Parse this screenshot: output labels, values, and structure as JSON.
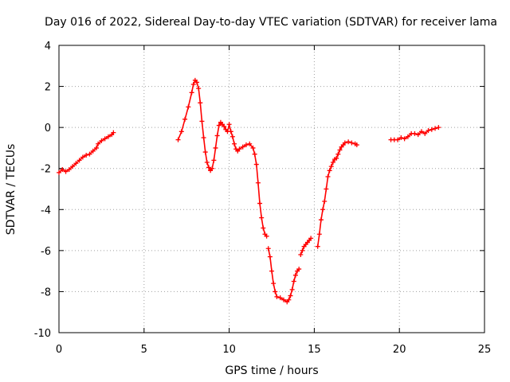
{
  "chart_data": {
    "type": "scatter",
    "title": "Day 016 of 2022, Sidereal Day-to-day VTEC variation (SDTVAR) for receiver lama",
    "xlabel": "GPS time / hours",
    "ylabel": "SDTVAR / TECUs",
    "xlim": [
      0,
      25
    ],
    "ylim": [
      -10,
      4
    ],
    "xticks": [
      0,
      5,
      10,
      15,
      20,
      25
    ],
    "yticks": [
      -10,
      -8,
      -6,
      -4,
      -2,
      0,
      2,
      4
    ],
    "xtick_labels": [
      "0",
      "5",
      "10",
      "15",
      "20",
      "25"
    ],
    "ytick_labels": [
      "-10",
      "-8",
      "-6",
      "-4",
      "-2",
      "0",
      "2",
      "4"
    ],
    "grid": true,
    "marker": "+",
    "series": [
      {
        "name": "SDTVAR",
        "color": "#ff0000",
        "segments": [
          {
            "x": [
              0.0,
              0.2,
              0.4,
              0.6,
              0.8,
              1.0,
              1.2,
              1.4,
              1.6,
              1.8,
              2.0,
              2.2,
              2.3,
              2.5,
              2.7,
              2.9,
              3.1,
              3.2
            ],
            "y": [
              -2.2,
              -2.05,
              -2.15,
              -2.05,
              -1.9,
              -1.75,
              -1.6,
              -1.45,
              -1.35,
              -1.3,
              -1.15,
              -1.0,
              -0.8,
              -0.65,
              -0.55,
              -0.45,
              -0.35,
              -0.25
            ]
          },
          {
            "x": [
              7.0,
              7.2,
              7.4,
              7.6,
              7.8,
              7.9,
              8.0,
              8.1,
              8.2,
              8.3,
              8.4,
              8.5,
              8.6,
              8.7,
              8.8,
              8.9,
              9.0,
              9.1,
              9.2,
              9.3,
              9.4,
              9.5,
              9.6,
              9.7,
              9.8,
              9.9,
              10.0,
              10.1,
              10.2,
              10.3,
              10.4,
              10.5,
              10.6,
              10.8,
              11.0,
              11.2,
              11.4,
              11.5,
              11.6,
              11.7,
              11.8,
              11.9,
              12.0,
              12.1,
              12.2
            ],
            "y": [
              -0.6,
              -0.2,
              0.4,
              1.0,
              1.7,
              2.1,
              2.3,
              2.2,
              1.9,
              1.2,
              0.3,
              -0.5,
              -1.2,
              -1.7,
              -1.95,
              -2.1,
              -2.0,
              -1.6,
              -1.0,
              -0.4,
              0.1,
              0.25,
              0.15,
              0.05,
              -0.1,
              -0.2,
              0.15,
              -0.2,
              -0.45,
              -0.8,
              -1.05,
              -1.15,
              -1.05,
              -0.95,
              -0.85,
              -0.8,
              -1.0,
              -1.3,
              -1.8,
              -2.7,
              -3.7,
              -4.4,
              -4.9,
              -5.2,
              -5.3
            ]
          },
          {
            "x": [
              12.3,
              12.4,
              12.5,
              12.6,
              12.7,
              12.8,
              13.0,
              13.2,
              13.4,
              13.5,
              13.6,
              13.7,
              13.8,
              13.9,
              14.0,
              14.1
            ],
            "y": [
              -5.9,
              -6.3,
              -7.0,
              -7.6,
              -8.0,
              -8.25,
              -8.3,
              -8.4,
              -8.5,
              -8.4,
              -8.2,
              -7.9,
              -7.5,
              -7.2,
              -7.0,
              -6.9
            ]
          },
          {
            "x": [
              14.2,
              14.3,
              14.4,
              14.5,
              14.6,
              14.7,
              14.8
            ],
            "y": [
              -6.2,
              -6.0,
              -5.8,
              -5.7,
              -5.6,
              -5.5,
              -5.4
            ]
          },
          {
            "x": [
              15.2,
              15.3,
              15.4,
              15.5,
              15.6,
              15.7,
              15.8,
              15.9,
              16.0,
              16.1,
              16.2,
              16.3,
              16.4,
              16.5,
              16.6,
              16.7,
              16.8,
              17.0,
              17.2,
              17.4,
              17.5
            ],
            "y": [
              -5.8,
              -5.2,
              -4.5,
              -4.0,
              -3.6,
              -3.0,
              -2.4,
              -2.1,
              -1.9,
              -1.7,
              -1.55,
              -1.5,
              -1.3,
              -1.1,
              -0.95,
              -0.85,
              -0.75,
              -0.7,
              -0.75,
              -0.8,
              -0.85
            ]
          },
          {
            "x": [
              19.5,
              19.7,
              19.9,
              20.1,
              20.3,
              20.5,
              20.7,
              20.9,
              21.1,
              21.3,
              21.5,
              21.7,
              21.9,
              22.1,
              22.3
            ],
            "y": [
              -0.6,
              -0.6,
              -0.6,
              -0.5,
              -0.55,
              -0.45,
              -0.3,
              -0.3,
              -0.35,
              -0.2,
              -0.3,
              -0.15,
              -0.1,
              -0.05,
              0.0
            ]
          }
        ]
      }
    ]
  }
}
